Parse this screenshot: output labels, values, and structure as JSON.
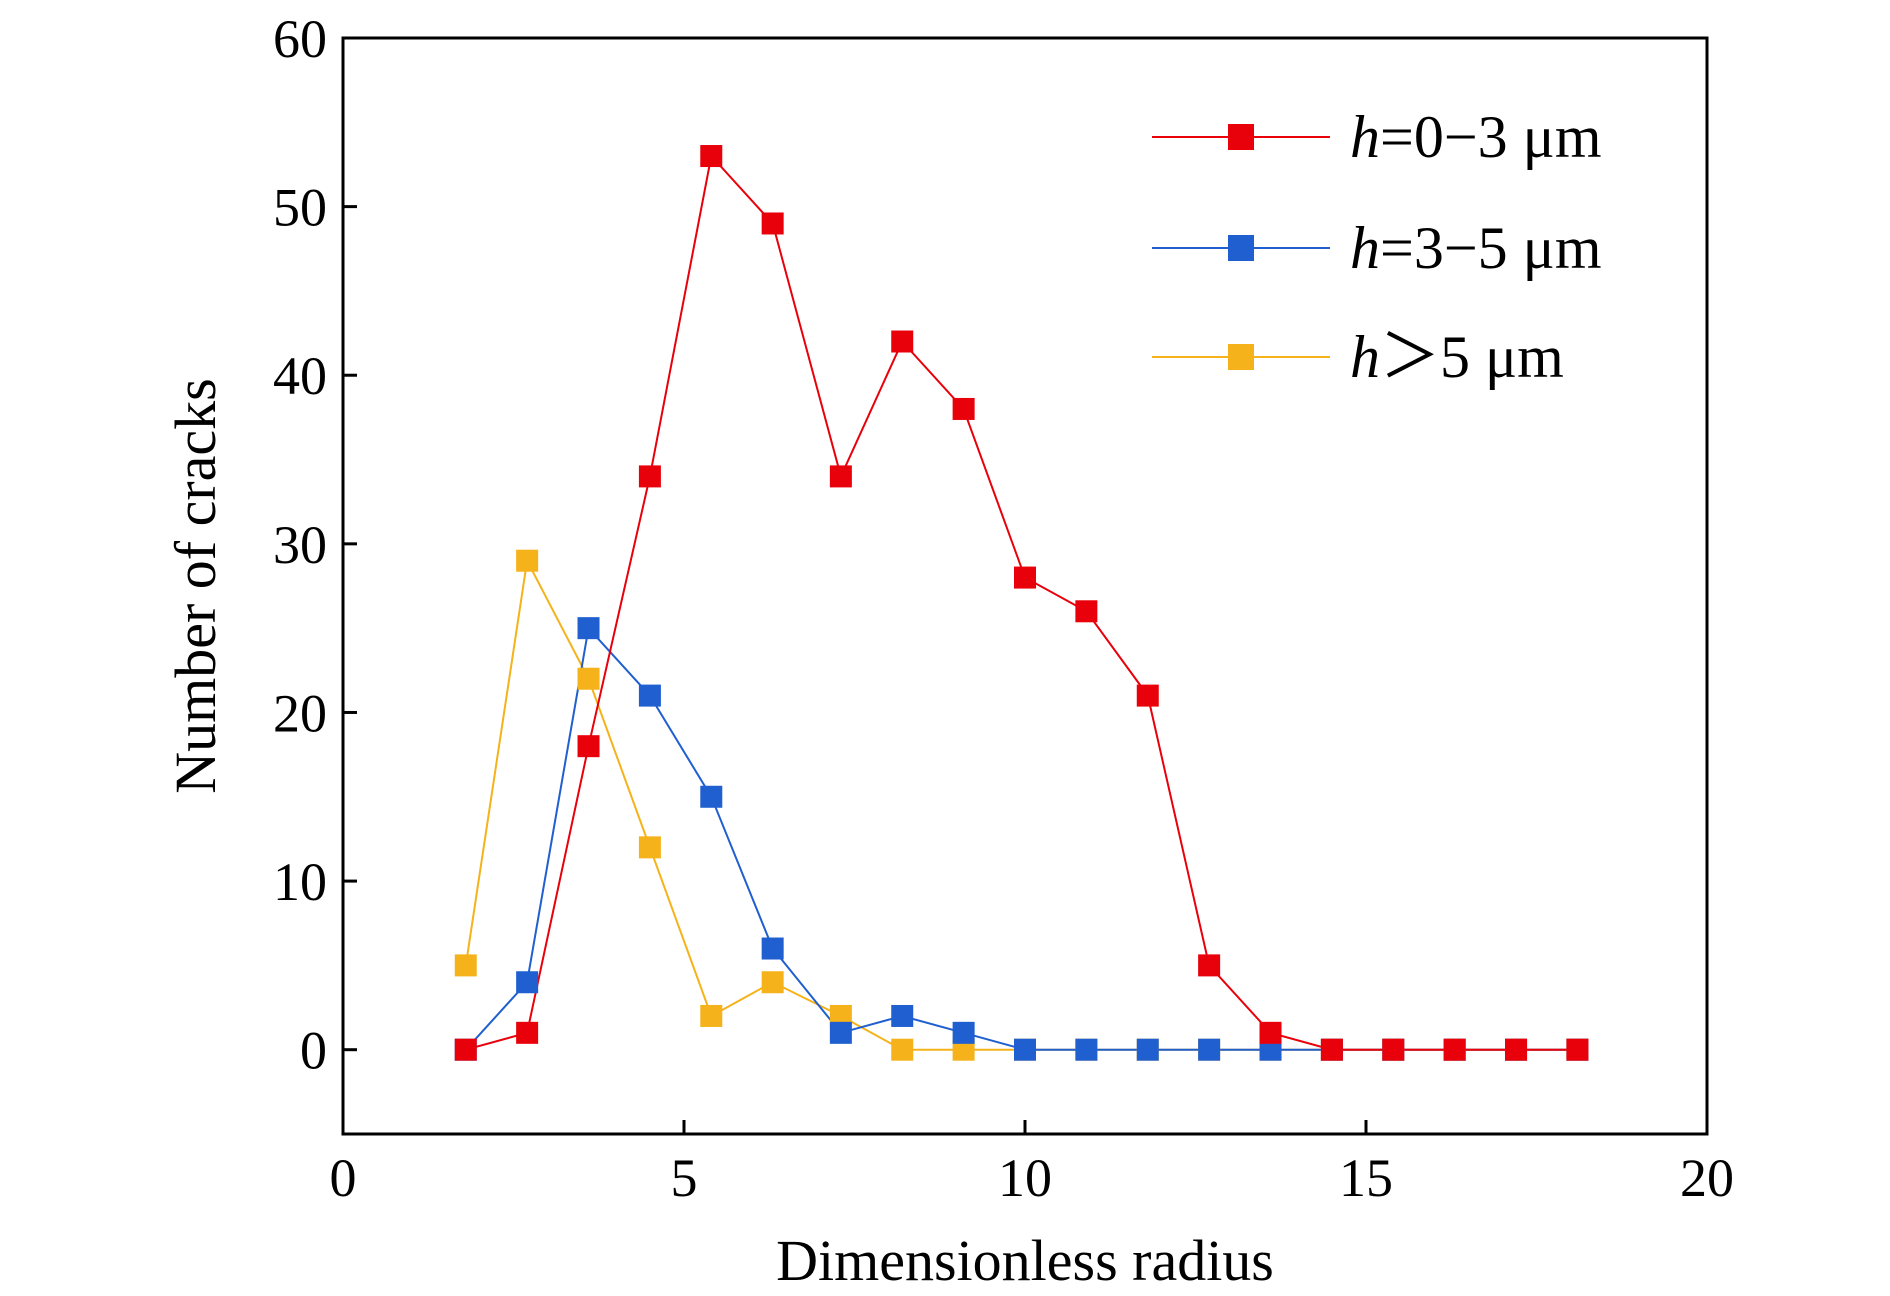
{
  "chart_data": {
    "type": "line",
    "xlabel": "Dimensionless radius",
    "ylabel": "Number of cracks",
    "xlim": [
      0,
      20
    ],
    "ylim": [
      -5,
      60
    ],
    "xticks": [
      "0",
      "5",
      "10",
      "15",
      "20"
    ],
    "yticks": [
      "0",
      "10",
      "20",
      "30",
      "40",
      "50",
      "60"
    ],
    "grid": false,
    "legend_position": "top-right",
    "series": [
      {
        "name": "h=0−3 μm",
        "label_italic": "h",
        "label_rest": "=0−3 μm",
        "color": "#e8000b",
        "marker": "square",
        "x": [
          1.8,
          2.7,
          3.6,
          4.5,
          5.4,
          6.3,
          7.3,
          8.2,
          9.1,
          10.0,
          10.9,
          11.8,
          12.7,
          13.6,
          14.5,
          15.4,
          16.3,
          17.2,
          18.1
        ],
        "y": [
          0,
          1,
          18,
          34,
          53,
          49,
          34,
          42,
          38,
          28,
          26,
          21,
          5,
          1,
          0,
          0,
          0,
          0,
          0
        ]
      },
      {
        "name": "h=3−5 μm",
        "label_italic": "h",
        "label_rest": "=3−5 μm",
        "color": "#1f5fcf",
        "marker": "square",
        "x": [
          1.8,
          2.7,
          3.6,
          4.5,
          5.4,
          6.3,
          7.3,
          8.2,
          9.1,
          10.0,
          10.9,
          11.8,
          12.7,
          13.6,
          14.5,
          15.4,
          16.3,
          17.2,
          18.1
        ],
        "y": [
          0,
          4,
          25,
          21,
          15,
          6,
          1,
          2,
          1,
          0,
          0,
          0,
          0,
          0,
          0,
          0,
          0,
          0,
          0
        ]
      },
      {
        "name": "h＞5 μm",
        "label_italic": "h",
        "label_rest": "＞5 μm",
        "color": "#f5b21b",
        "marker": "square",
        "x": [
          1.8,
          2.7,
          3.6,
          4.5,
          5.4,
          6.3,
          7.3,
          8.2,
          9.1,
          10.0,
          10.9,
          11.8,
          12.7,
          13.6,
          14.5,
          15.4,
          16.3,
          17.2,
          18.1
        ],
        "y": [
          5,
          29,
          22,
          12,
          2,
          4,
          2,
          0,
          0,
          0,
          0,
          0,
          0,
          0,
          0,
          0,
          0,
          0,
          0
        ]
      }
    ]
  }
}
